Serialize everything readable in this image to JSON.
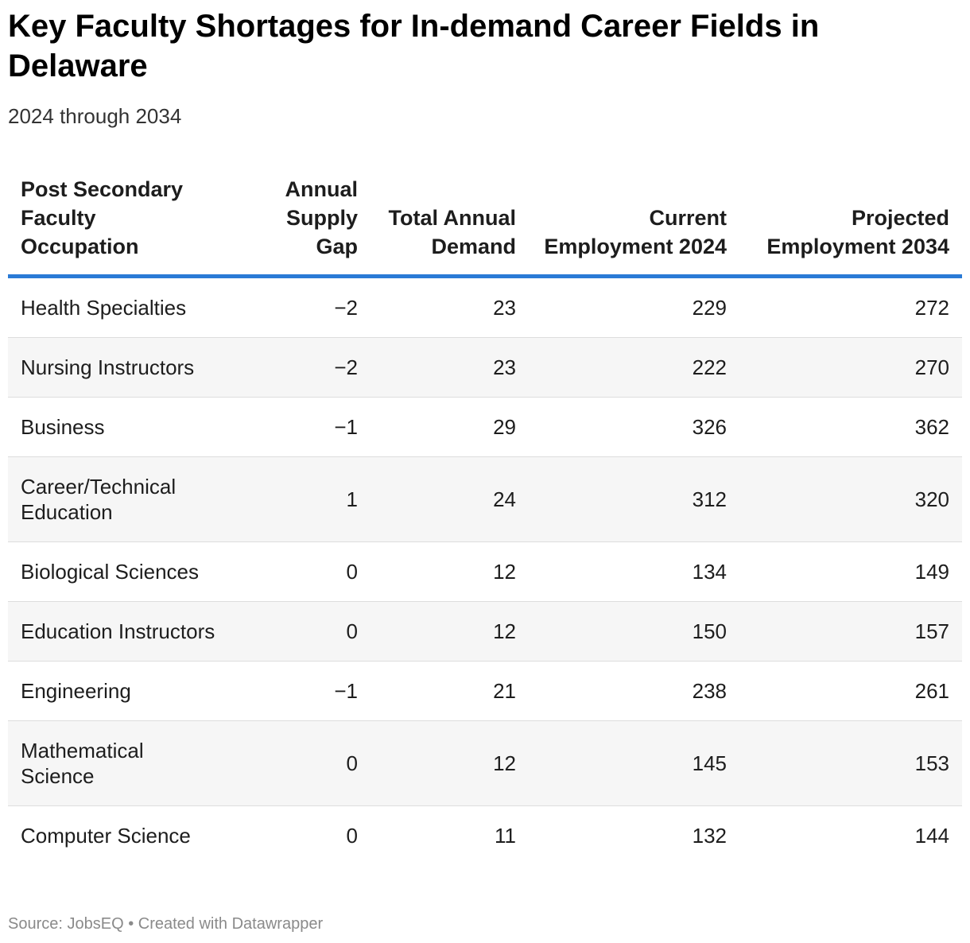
{
  "title": "Key Faculty Shortages for In-demand Career Fields in Delaware",
  "subtitle": "2024 through 2034",
  "footer": {
    "source_label": "Source: ",
    "source": "JobsEQ",
    "separator": " • ",
    "credit": "Created with Datawrapper"
  },
  "colors": {
    "header_rule": "#2a7ad6",
    "row_stripe": "#f6f6f6"
  },
  "chart_data": {
    "type": "table",
    "title": "Key Faculty Shortages for In-demand Career Fields in Delaware",
    "subtitle": "2024 through 2034",
    "columns": [
      "Post Secondary Faculty Occupation",
      "Annual Supply Gap",
      "Total Annual Demand",
      "Current Employment 2024",
      "Projected Employment 2034"
    ],
    "rows": [
      [
        "Health Specialties",
        "−2",
        "23",
        "229",
        "272"
      ],
      [
        "Nursing Instructors",
        "−2",
        "23",
        "222",
        "270"
      ],
      [
        "Business",
        "−1",
        "29",
        "326",
        "362"
      ],
      [
        "Career/Technical Education",
        "1",
        "24",
        "312",
        "320"
      ],
      [
        "Biological Sciences",
        "0",
        "12",
        "134",
        "149"
      ],
      [
        "Education Instructors",
        "0",
        "12",
        "150",
        "157"
      ],
      [
        "Engineering",
        "−1",
        "21",
        "238",
        "261"
      ],
      [
        "Mathematical Science",
        "0",
        "12",
        "145",
        "153"
      ],
      [
        "Computer Science",
        "0",
        "11",
        "132",
        "144"
      ]
    ]
  }
}
